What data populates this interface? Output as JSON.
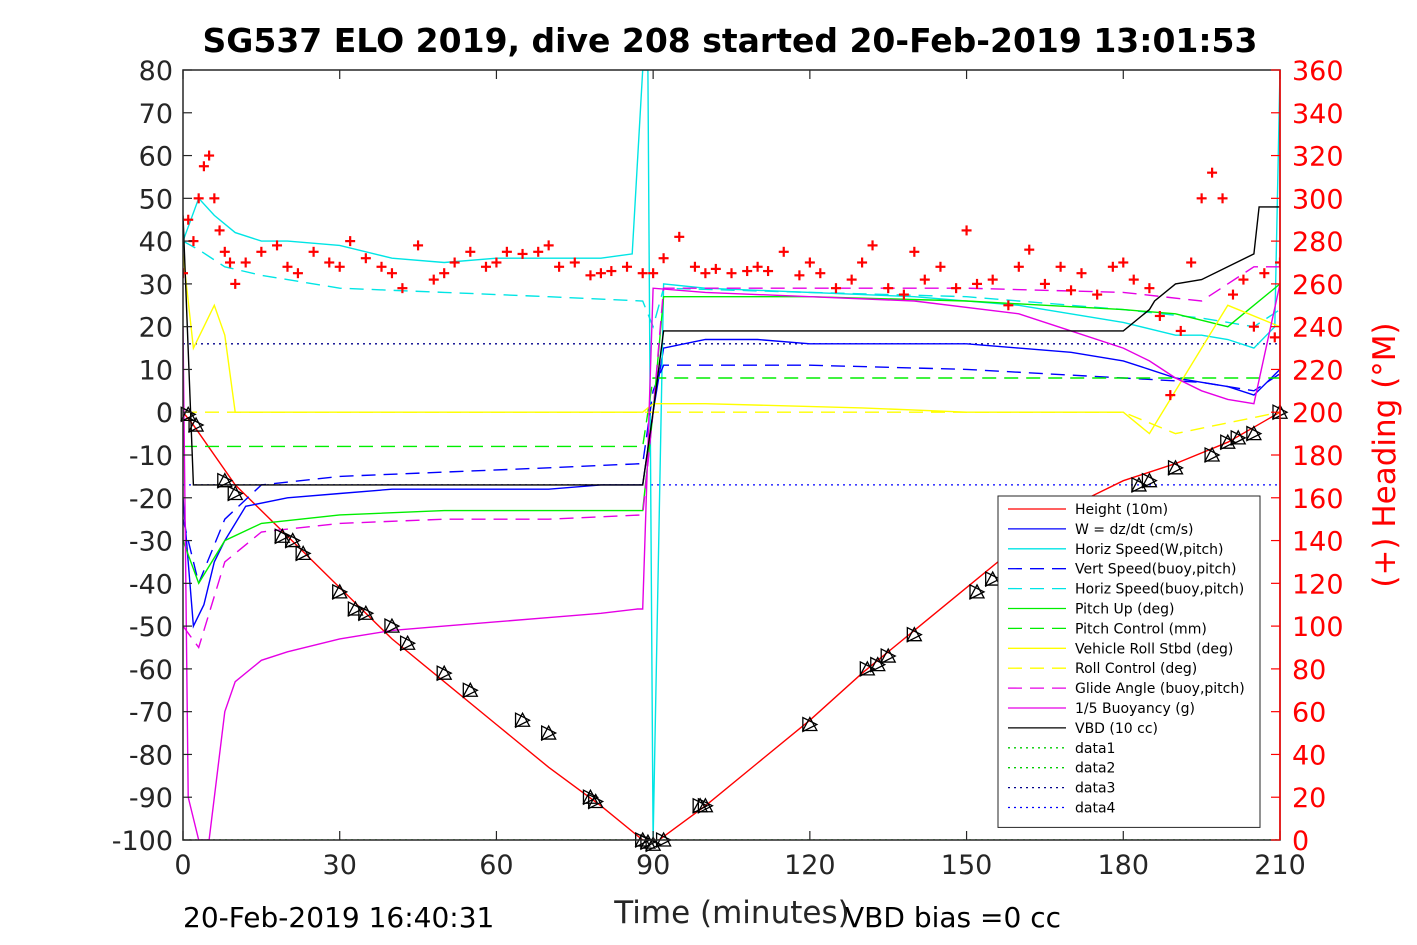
{
  "chart_data": {
    "type": "line",
    "title": "SG537 ELO 2019, dive 208 started 20-Feb-2019 13:01:53",
    "xlabel": "Time (minutes)",
    "ylabel": "",
    "y2label": "(+) Heading (°M)",
    "xlim": [
      0,
      210
    ],
    "ylim": [
      -100,
      80
    ],
    "y2lim": [
      0,
      360
    ],
    "xticks": [
      "0",
      "30",
      "60",
      "90",
      "120",
      "150",
      "180",
      "210"
    ],
    "yticks": [
      "80",
      "70",
      "60",
      "50",
      "40",
      "30",
      "20",
      "10",
      "0",
      "-10",
      "-20",
      "-30",
      "-40",
      "-50",
      "-60",
      "-70",
      "-80",
      "-90",
      "-100"
    ],
    "y2ticks": [
      "360",
      "340",
      "320",
      "300",
      "280",
      "260",
      "240",
      "220",
      "200",
      "180",
      "160",
      "140",
      "120",
      "100",
      "80",
      "60",
      "40",
      "20",
      "0"
    ],
    "legend_position": "lower-right",
    "footer_left": "20-Feb-2019 16:40:31",
    "footer_right": "VBD bias =0 cc",
    "series": [
      {
        "name": "Height (10m)",
        "color": "#ff0000",
        "style": "solid",
        "x": [
          0,
          2,
          10,
          20,
          30,
          40,
          50,
          60,
          70,
          80,
          88,
          90,
          100,
          110,
          120,
          130,
          140,
          150,
          160,
          170,
          180,
          190,
          200,
          210
        ],
        "y": [
          0,
          -3,
          -17,
          -29,
          -41,
          -53,
          -63,
          -73,
          -83,
          -92,
          -100,
          -101,
          -92,
          -82,
          -72,
          -61,
          -51,
          -41,
          -31,
          -22,
          -16,
          -12,
          -7,
          0
        ]
      },
      {
        "name": "W = dz/dt (cm/s)",
        "color": "#0000ff",
        "style": "solid",
        "x": [
          0,
          2,
          4,
          6,
          8,
          12,
          20,
          30,
          40,
          50,
          60,
          70,
          80,
          88,
          90,
          92,
          100,
          110,
          120,
          130,
          140,
          150,
          160,
          170,
          180,
          185,
          190,
          195,
          200,
          205,
          210
        ],
        "y": [
          -20,
          -50,
          -45,
          -35,
          -30,
          -22,
          -20,
          -19,
          -18,
          -18,
          -18,
          -18,
          -17,
          -17,
          0,
          15,
          17,
          17,
          16,
          16,
          16,
          16,
          15,
          14,
          12,
          10,
          8,
          7,
          6,
          4,
          10
        ]
      },
      {
        "name": "Horiz Speed(W,pitch)",
        "color": "#00e5e5",
        "style": "solid",
        "x": [
          0,
          3,
          6,
          10,
          15,
          20,
          30,
          40,
          50,
          60,
          70,
          80,
          86,
          88,
          89,
          90,
          92,
          100,
          120,
          140,
          160,
          180,
          190,
          195,
          200,
          205,
          209,
          210
        ],
        "y": [
          40,
          50,
          46,
          42,
          40,
          40,
          39,
          36,
          35,
          36,
          36,
          36,
          37,
          80,
          80,
          -100,
          30,
          29,
          28,
          27,
          25,
          21,
          18,
          18,
          17,
          15,
          20,
          80
        ]
      },
      {
        "name": "Vert Speed(buoy,pitch)",
        "color": "#0000ff",
        "style": "dashed",
        "x": [
          0,
          3,
          8,
          15,
          30,
          50,
          70,
          88,
          90,
          92,
          120,
          150,
          180,
          195,
          205,
          210
        ],
        "y": [
          -25,
          -40,
          -25,
          -17,
          -15,
          -14,
          -13,
          -12,
          5,
          11,
          11,
          10,
          8,
          7,
          5,
          9
        ]
      },
      {
        "name": "Horiz Speed(buoy,pitch)",
        "color": "#00e5e5",
        "style": "dashed",
        "x": [
          0,
          3,
          8,
          15,
          30,
          50,
          70,
          88,
          90,
          92,
          120,
          150,
          180,
          195,
          205,
          210
        ],
        "y": [
          40,
          38,
          34,
          32,
          29,
          28,
          27,
          26,
          20,
          29,
          28,
          27,
          24,
          22,
          20,
          24
        ]
      },
      {
        "name": "Pitch Up (deg)",
        "color": "#00ee00",
        "style": "solid",
        "x": [
          0,
          3,
          8,
          15,
          30,
          50,
          70,
          88,
          90,
          92,
          120,
          150,
          180,
          190,
          200,
          210
        ],
        "y": [
          -30,
          -40,
          -30,
          -26,
          -24,
          -23,
          -23,
          -23,
          0,
          27,
          27,
          26,
          24,
          23,
          20,
          30
        ]
      },
      {
        "name": "Pitch Control (mm)",
        "color": "#00ee00",
        "style": "dashed",
        "x": [
          0,
          2,
          10,
          30,
          60,
          88,
          90,
          92,
          120,
          150,
          180,
          210
        ],
        "y": [
          -8,
          -8,
          -8,
          -8,
          -8,
          -8,
          8,
          8,
          8,
          8,
          8,
          8
        ]
      },
      {
        "name": "Vehicle Roll Stbd (deg)",
        "color": "#ffff00",
        "style": "solid",
        "x": [
          0,
          2,
          4,
          6,
          8,
          10,
          12,
          20,
          30,
          50,
          70,
          88,
          90,
          100,
          130,
          150,
          170,
          180,
          185,
          190,
          200,
          210
        ],
        "y": [
          37,
          15,
          20,
          25,
          18,
          0,
          0,
          0,
          0,
          0,
          0,
          0,
          2,
          2,
          1,
          0,
          0,
          0,
          -5,
          5,
          25,
          20
        ]
      },
      {
        "name": "Roll Control (deg)",
        "color": "#ffff00",
        "style": "dashed",
        "x": [
          0,
          10,
          30,
          60,
          88,
          90,
          120,
          150,
          180,
          190,
          210
        ],
        "y": [
          0,
          0,
          0,
          0,
          0,
          0,
          0,
          0,
          0,
          -5,
          0
        ]
      },
      {
        "name": "Glide Angle (buoy,pitch)",
        "color": "#e500e5",
        "style": "dashed",
        "x": [
          0,
          3,
          8,
          15,
          30,
          50,
          70,
          88,
          90,
          92,
          120,
          150,
          180,
          195,
          205,
          210
        ],
        "y": [
          -50,
          -55,
          -35,
          -28,
          -26,
          -25,
          -25,
          -24,
          0,
          29,
          29,
          29,
          28,
          26,
          34,
          34
        ]
      },
      {
        "name": "1/5 Buoyancy (g)",
        "color": "#e500e5",
        "style": "solid",
        "x": [
          0,
          1,
          3,
          5,
          8,
          10,
          15,
          20,
          30,
          40,
          50,
          60,
          70,
          80,
          87,
          88,
          90,
          100,
          120,
          140,
          160,
          170,
          180,
          185,
          190,
          195,
          200,
          205,
          210
        ],
        "y": [
          20,
          -90,
          -100,
          -100,
          -70,
          -63,
          -58,
          -56,
          -53,
          -51,
          -50,
          -49,
          -48,
          -47,
          -46,
          -46,
          29,
          28,
          27,
          26,
          23,
          19,
          15,
          12,
          8,
          5,
          3,
          2,
          30
        ]
      },
      {
        "name": "VBD (10 cc)",
        "color": "#000000",
        "style": "solid",
        "x": [
          0,
          2,
          3,
          50,
          87,
          88,
          90,
          92,
          180,
          185,
          186,
          190,
          195,
          205,
          206,
          210
        ],
        "y": [
          46,
          -17,
          -17,
          -17,
          -17,
          -17,
          0,
          19,
          19,
          24,
          26,
          30,
          31,
          37,
          48,
          48
        ]
      },
      {
        "name": "data1",
        "color": "#00cc00",
        "style": "dotted",
        "x": [
          0,
          210
        ],
        "y": [
          -100,
          -100
        ]
      },
      {
        "name": "data2",
        "color": "#00cc00",
        "style": "dotted",
        "x": [
          0,
          210
        ],
        "y": [
          -100,
          -100
        ]
      },
      {
        "name": "data3",
        "color": "#00008b",
        "style": "dotted",
        "x": [
          0,
          210
        ],
        "y": [
          16,
          16
        ]
      },
      {
        "name": "data4",
        "color": "#0000ff",
        "style": "dotted",
        "x": [
          0,
          210
        ],
        "y": [
          -17,
          -17
        ]
      }
    ],
    "heading_series": {
      "color": "#ff0000",
      "marker": "+",
      "x": [
        0,
        1,
        2,
        3,
        4,
        5,
        6,
        7,
        8,
        9,
        10,
        12,
        15,
        18,
        20,
        22,
        25,
        28,
        30,
        32,
        35,
        38,
        40,
        42,
        45,
        48,
        50,
        52,
        55,
        58,
        60,
        62,
        65,
        68,
        70,
        72,
        75,
        78,
        80,
        82,
        85,
        88,
        90,
        92,
        95,
        98,
        100,
        102,
        105,
        108,
        110,
        112,
        115,
        118,
        120,
        122,
        125,
        128,
        130,
        132,
        135,
        138,
        140,
        142,
        145,
        148,
        150,
        152,
        155,
        158,
        160,
        162,
        165,
        168,
        170,
        172,
        175,
        178,
        180,
        182,
        185,
        187,
        189,
        191,
        193,
        195,
        197,
        199,
        201,
        203,
        205,
        207,
        209,
        210
      ],
      "y": [
        265,
        290,
        280,
        300,
        315,
        320,
        300,
        285,
        275,
        270,
        260,
        270,
        275,
        278,
        268,
        265,
        275,
        270,
        268,
        280,
        272,
        268,
        265,
        258,
        278,
        262,
        265,
        270,
        275,
        268,
        270,
        275,
        274,
        275,
        278,
        268,
        270,
        264,
        265,
        266,
        268,
        265,
        265,
        272,
        282,
        268,
        265,
        267,
        265,
        266,
        268,
        266,
        275,
        264,
        270,
        265,
        258,
        262,
        270,
        278,
        258,
        255,
        275,
        262,
        268,
        258,
        285,
        260,
        262,
        250,
        268,
        276,
        260,
        268,
        257,
        265,
        255,
        268,
        270,
        262,
        258,
        245,
        208,
        238,
        270,
        300,
        312,
        300,
        255,
        262,
        240,
        265,
        235,
        270
      ]
    },
    "triangle_markers": {
      "x": [
        1,
        2.5,
        8,
        10,
        19,
        21,
        23,
        30,
        33,
        35,
        40,
        43,
        50,
        55,
        65,
        70,
        78,
        79,
        88,
        89,
        90,
        92,
        99,
        100,
        120,
        131,
        133,
        135,
        140,
        152,
        155,
        183,
        185,
        190,
        197,
        200,
        202,
        205,
        210
      ],
      "y": [
        -0.5,
        -3,
        -16,
        -19,
        -29,
        -30,
        -33,
        -42,
        -46,
        -47,
        -50,
        -54,
        -61,
        -65,
        -72,
        -75,
        -90,
        -91,
        -100,
        -100.5,
        -101,
        -100,
        -92,
        -92,
        -73,
        -60,
        -59,
        -57,
        -52,
        -42,
        -39,
        -17,
        -16,
        -13,
        -10,
        -7,
        -6,
        -5,
        0
      ]
    }
  }
}
